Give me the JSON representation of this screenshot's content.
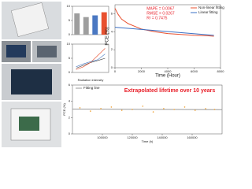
{
  "chart_data": [
    {
      "type": "bar",
      "categories": [
        null,
        null,
        null,
        null
      ],
      "values": [
        7.5,
        6.2,
        6.8,
        7.9
      ],
      "colors": [
        "#9e9e9e",
        "#9e9e9e",
        "#4a78c2",
        "#e8502f"
      ],
      "ylim": [
        0,
        10
      ],
      "yticks": [
        0,
        5,
        10
      ]
    },
    {
      "type": "line",
      "x_label": "Radiation intensity",
      "x": [
        1,
        2,
        3,
        4,
        5
      ],
      "xlim": [
        0.5,
        5.5
      ],
      "ylim": [
        0,
        10
      ],
      "yticks": [
        0,
        5,
        10
      ],
      "series": [
        {
          "color": "#333333",
          "values": [
            1.5,
            2.5,
            3.5,
            4.2,
            5.0
          ]
        },
        {
          "color": "#e8502f",
          "values": [
            1.0,
            2.0,
            3.5,
            6.0,
            8.5
          ]
        },
        {
          "color": "#4a78c2",
          "values": [
            2.0,
            3.0,
            3.8,
            4.5,
            6.5
          ]
        }
      ]
    },
    {
      "type": "line",
      "x_label": "Time (Hour)",
      "y_label": "PCE (%)",
      "annotations": [
        "MAPE = 0.0067",
        "RMSE = 0.0267",
        "R² = 0.7475"
      ],
      "xlim": [
        0,
        8000
      ],
      "xticks": [
        0,
        2000,
        4000,
        6000,
        8000
      ],
      "ylim": [
        0,
        7
      ],
      "yticks": [
        0,
        2,
        4,
        6
      ],
      "legend": "upper right",
      "series": [
        {
          "name": "Non-linear fitting",
          "color": "#e8502f",
          "x": [
            0,
            250,
            500,
            1000,
            1500,
            2000,
            3000,
            4000,
            5000,
            6000,
            7000,
            7500
          ],
          "values": [
            6.6,
            5.9,
            5.4,
            4.9,
            4.6,
            4.3,
            4.0,
            3.8,
            3.7,
            3.6,
            3.55,
            3.5
          ]
        },
        {
          "name": "Linear fitting",
          "color": "#3a6fc4",
          "x": [
            0,
            7500
          ],
          "values": [
            4.5,
            3.6
          ]
        }
      ]
    },
    {
      "type": "scatter",
      "title": "Extrapolated lifetime over 10 years",
      "x_label": "Time (h)",
      "y_label": "PCE (%)",
      "xlim": [
        80000,
        180000
      ],
      "xticks": [
        100000,
        120000,
        140000,
        160000
      ],
      "ylim": [
        0,
        6
      ],
      "yticks": [
        0,
        2,
        4,
        6
      ],
      "legend": "upper left",
      "series": [
        {
          "name": "Fitting line",
          "color": "#999999",
          "x": [
            80000,
            180000
          ],
          "values": [
            3.05,
            2.98
          ],
          "line": true
        },
        {
          "color": "#f0a030",
          "x": [
            85000,
            92000,
            99000,
            106000,
            113000,
            120000,
            127000,
            134000,
            141000,
            148000,
            155000,
            162000,
            169000,
            175000
          ],
          "values": [
            3.2,
            2.8,
            3.1,
            3.3,
            2.9,
            3.0,
            3.4,
            2.7,
            3.1,
            3.0,
            3.3,
            2.9,
            3.1,
            3.0
          ]
        }
      ]
    }
  ]
}
